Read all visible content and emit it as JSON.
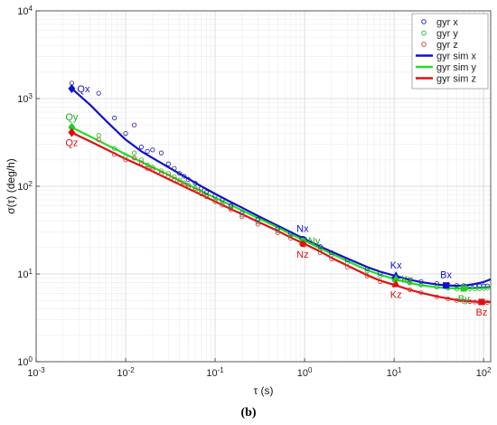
{
  "caption": "(b)",
  "chart_data": {
    "type": "scatter",
    "xlabel": "τ (s)",
    "ylabel": "σ(τ) (deg/h)",
    "x_scale": "log",
    "y_scale": "log",
    "xlim": [
      0.001,
      120
    ],
    "ylim": [
      1,
      10000
    ],
    "grid": true,
    "legend_position": "top-right",
    "x_ticks": [
      {
        "value": 0.001,
        "base": "10",
        "exp": "-3"
      },
      {
        "value": 0.01,
        "base": "10",
        "exp": "-2"
      },
      {
        "value": 0.1,
        "base": "10",
        "exp": "-1"
      },
      {
        "value": 1,
        "base": "10",
        "exp": "0"
      },
      {
        "value": 10,
        "base": "10",
        "exp": "1"
      },
      {
        "value": 100,
        "base": "10",
        "exp": "2"
      }
    ],
    "y_ticks": [
      {
        "value": 1,
        "base": "10",
        "exp": "0"
      },
      {
        "value": 10,
        "base": "10",
        "exp": "1"
      },
      {
        "value": 100,
        "base": "10",
        "exp": "2"
      },
      {
        "value": 1000,
        "base": "10",
        "exp": "3"
      },
      {
        "value": 10000,
        "base": "10",
        "exp": "4"
      }
    ],
    "series": [
      {
        "name": "gyr x",
        "kind": "markers",
        "color": "#1a1ab8",
        "x": [
          0.0025,
          0.005,
          0.0075,
          0.01,
          0.0125,
          0.015,
          0.0175,
          0.02,
          0.025,
          0.03,
          0.035,
          0.04,
          0.045,
          0.05,
          0.06,
          0.07,
          0.08,
          0.1,
          0.12,
          0.15,
          0.2,
          0.3,
          0.5,
          0.7,
          1,
          1.5,
          2,
          3,
          5,
          7,
          10,
          15,
          20,
          30,
          40,
          50,
          60,
          70,
          80,
          90,
          100,
          110
        ],
        "y": [
          1500,
          1150,
          600,
          400,
          500,
          280,
          250,
          260,
          240,
          180,
          160,
          140,
          130,
          120,
          108,
          95,
          85,
          78,
          70,
          60,
          50,
          42,
          33,
          29,
          25,
          20.5,
          17.5,
          14.5,
          11.5,
          10.2,
          9.2,
          8.6,
          8.2,
          7.8,
          7.6,
          7.4,
          7.35,
          7.3,
          7.3,
          7.3,
          7.3,
          7.3
        ]
      },
      {
        "name": "gyr y",
        "kind": "markers",
        "color": "#22bb22",
        "x": [
          0.0025,
          0.005,
          0.0075,
          0.01,
          0.0125,
          0.015,
          0.0175,
          0.02,
          0.025,
          0.03,
          0.035,
          0.04,
          0.045,
          0.05,
          0.06,
          0.07,
          0.08,
          0.1,
          0.12,
          0.15,
          0.2,
          0.3,
          0.5,
          0.7,
          1,
          1.5,
          2,
          3,
          5,
          7,
          10,
          15,
          20,
          30,
          40,
          50,
          60,
          70,
          80,
          90,
          100,
          110
        ],
        "y": [
          480,
          380,
          270,
          220,
          240,
          200,
          175,
          165,
          150,
          140,
          128,
          118,
          110,
          104,
          95,
          86,
          80,
          70,
          64,
          56,
          47,
          39,
          31,
          27,
          23.5,
          19.5,
          16.5,
          13.5,
          10.8,
          9.5,
          8.6,
          7.9,
          7.5,
          7.1,
          6.9,
          6.8,
          6.75,
          6.75,
          6.75,
          6.8,
          6.85,
          6.9
        ]
      },
      {
        "name": "gyr z",
        "kind": "markers",
        "color": "#e33030",
        "x": [
          0.0025,
          0.005,
          0.0075,
          0.01,
          0.0125,
          0.015,
          0.0175,
          0.02,
          0.025,
          0.03,
          0.035,
          0.04,
          0.045,
          0.05,
          0.06,
          0.07,
          0.08,
          0.1,
          0.12,
          0.15,
          0.2,
          0.3,
          0.5,
          0.7,
          1,
          1.5,
          2,
          3,
          5,
          7,
          10,
          15,
          20,
          30,
          40,
          50,
          60,
          70,
          80,
          90,
          100,
          110
        ],
        "y": [
          420,
          340,
          230,
          200,
          210,
          185,
          160,
          155,
          140,
          130,
          120,
          110,
          103,
          98,
          90,
          82,
          76,
          67,
          61,
          54,
          45,
          37,
          29.5,
          25.5,
          21.5,
          17.5,
          14.8,
          12,
          9.5,
          8.2,
          7.5,
          6.6,
          6.1,
          5.5,
          5.2,
          5,
          4.9,
          4.85,
          4.8,
          4.75,
          4.75,
          4.75
        ]
      },
      {
        "name": "gyr sim x",
        "kind": "line",
        "color": "#1010c8",
        "x": [
          0.0025,
          0.004,
          0.006,
          0.01,
          0.015,
          0.02,
          0.03,
          0.05,
          0.07,
          0.1,
          0.15,
          0.2,
          0.3,
          0.5,
          0.7,
          1,
          1.5,
          2,
          3,
          5,
          7,
          10,
          15,
          20,
          30,
          40,
          50,
          60,
          70,
          80,
          90,
          100,
          120
        ],
        "y": [
          1300,
          850,
          560,
          340,
          250,
          210,
          165,
          122,
          100,
          82,
          66,
          57,
          46,
          35.5,
          30,
          25,
          20.5,
          18,
          15,
          12,
          10.6,
          9.6,
          8.6,
          8.1,
          7.6,
          7.4,
          7.35,
          7.4,
          7.5,
          7.7,
          7.9,
          8.1,
          8.7
        ]
      },
      {
        "name": "gyr sim y",
        "kind": "line",
        "color": "#22dd22",
        "x": [
          0.0025,
          0.004,
          0.006,
          0.01,
          0.015,
          0.02,
          0.03,
          0.05,
          0.07,
          0.1,
          0.15,
          0.2,
          0.3,
          0.5,
          0.7,
          1,
          1.5,
          2,
          3,
          5,
          7,
          10,
          15,
          20,
          30,
          40,
          50,
          60,
          70,
          80,
          90,
          100,
          120
        ],
        "y": [
          470,
          370,
          300,
          232,
          190,
          165,
          135,
          104,
          88,
          74,
          61,
          53,
          43.5,
          34,
          28.5,
          24,
          19.6,
          17,
          14,
          11.1,
          9.8,
          8.8,
          7.9,
          7.45,
          7.05,
          6.9,
          6.85,
          6.85,
          6.85,
          6.9,
          6.95,
          7,
          7.1
        ]
      },
      {
        "name": "gyr sim z",
        "kind": "line",
        "color": "#dd1111",
        "x": [
          0.0025,
          0.004,
          0.006,
          0.01,
          0.015,
          0.02,
          0.03,
          0.05,
          0.07,
          0.1,
          0.15,
          0.2,
          0.3,
          0.5,
          0.7,
          1,
          1.5,
          2,
          3,
          5,
          7,
          10,
          15,
          20,
          30,
          40,
          50,
          60,
          70,
          80,
          90,
          100,
          120
        ],
        "y": [
          410,
          325,
          265,
          205,
          170,
          148,
          121,
          94,
          80,
          67,
          55,
          48,
          39.5,
          31,
          26,
          22,
          18,
          15.3,
          12.5,
          9.7,
          8.4,
          7.5,
          6.6,
          6.1,
          5.55,
          5.25,
          5.05,
          4.95,
          4.9,
          4.85,
          4.8,
          4.8,
          4.8
        ]
      }
    ],
    "annotations": [
      {
        "label": "Qx",
        "x": 0.0025,
        "y": 1300,
        "marker": "diamond",
        "color": "#1010c8",
        "text_color": "#1010c8",
        "text_pos": "right"
      },
      {
        "label": "Qy",
        "x": 0.0025,
        "y": 470,
        "marker": "diamond",
        "color": "#22cc22",
        "text_color": "#22aa22",
        "text_pos": "above"
      },
      {
        "label": "Qz",
        "x": 0.0025,
        "y": 410,
        "marker": "diamond",
        "color": "#dd1111",
        "text_color": "#dd1111",
        "text_pos": "below"
      },
      {
        "label": "Nx",
        "x": 0.95,
        "y": 25,
        "marker": "circle",
        "color": "#1010c8",
        "text_color": "#1010c8",
        "text_pos": "above"
      },
      {
        "label": "Ny",
        "x": 0.95,
        "y": 24,
        "marker": "circle",
        "color": "#22cc22",
        "text_color": "#22aa22",
        "text_pos": "right"
      },
      {
        "label": "Nz",
        "x": 0.95,
        "y": 22,
        "marker": "circle",
        "color": "#dd1111",
        "text_color": "#dd1111",
        "text_pos": "below"
      },
      {
        "label": "Kx",
        "x": 10.5,
        "y": 9.5,
        "marker": "triangle",
        "color": "#1010c8",
        "text_color": "#1010c8",
        "text_pos": "above"
      },
      {
        "label": "Ky",
        "x": 10.5,
        "y": 8.8,
        "marker": "triangle",
        "color": "#22cc22",
        "text_color": "#22aa22",
        "text_pos": "right"
      },
      {
        "label": "Kz",
        "x": 10.5,
        "y": 7.6,
        "marker": "triangle",
        "color": "#dd1111",
        "text_color": "#dd1111",
        "text_pos": "below"
      },
      {
        "label": "Bx",
        "x": 38,
        "y": 7.4,
        "marker": "square",
        "color": "#1010c8",
        "text_color": "#1010c8",
        "text_pos": "above"
      },
      {
        "label": "By",
        "x": 60,
        "y": 6.85,
        "marker": "square",
        "color": "#22cc22",
        "text_color": "#22aa22",
        "text_pos": "below"
      },
      {
        "label": "Bz",
        "x": 95,
        "y": 4.8,
        "marker": "square",
        "color": "#dd1111",
        "text_color": "#dd1111",
        "text_pos": "below"
      }
    ]
  }
}
